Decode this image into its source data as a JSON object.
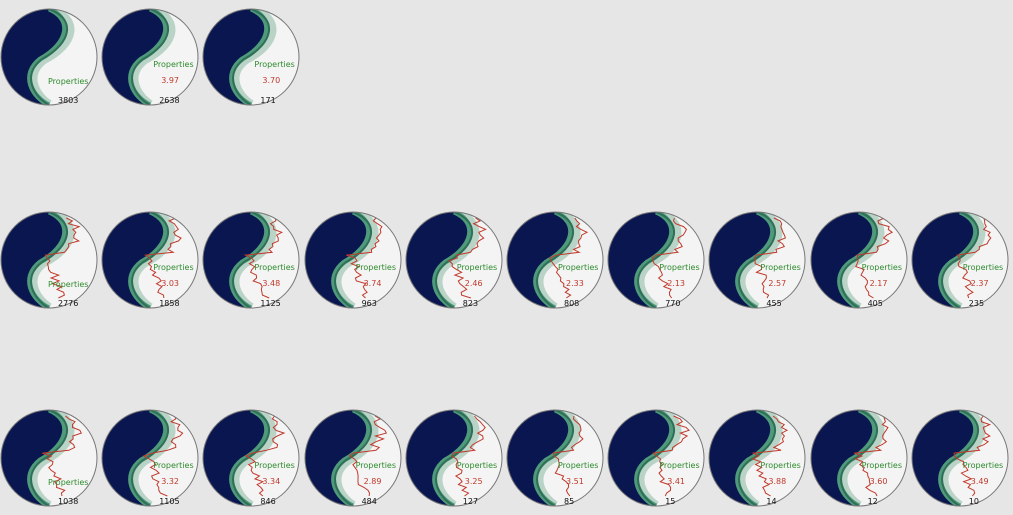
{
  "colors": {
    "background": "#e6e6e6",
    "dark_fill": "#0a1650",
    "band_light": "#4e9a7a",
    "band_dark": "#2f6f58",
    "profile": "#c0392b",
    "label_green": "#2e8b2e",
    "label_red": "#c0392b"
  },
  "label_word": "Properties",
  "rows": [
    {
      "glyphs": [
        {
          "show_title": true,
          "score": "",
          "count": "3803",
          "has_profile": false
        },
        {
          "show_title": true,
          "score": "3.97",
          "count": "2638",
          "has_profile": false
        },
        {
          "show_title": true,
          "score": "3.70",
          "count": "171",
          "has_profile": false
        }
      ]
    },
    {
      "glyphs": [
        {
          "show_title": true,
          "score": "",
          "count": "2776",
          "has_profile": true
        },
        {
          "show_title": true,
          "score": "3.03",
          "count": "1858",
          "has_profile": true
        },
        {
          "show_title": true,
          "score": "3.48",
          "count": "1125",
          "has_profile": true
        },
        {
          "show_title": true,
          "score": "3.74",
          "count": "963",
          "has_profile": true
        },
        {
          "show_title": true,
          "score": "2.46",
          "count": "823",
          "has_profile": true
        },
        {
          "show_title": true,
          "score": "2.33",
          "count": "808",
          "has_profile": true
        },
        {
          "show_title": true,
          "score": "2.13",
          "count": "770",
          "has_profile": true
        },
        {
          "show_title": true,
          "score": "2.57",
          "count": "455",
          "has_profile": true
        },
        {
          "show_title": true,
          "score": "2.17",
          "count": "405",
          "has_profile": true
        },
        {
          "show_title": true,
          "score": "2.37",
          "count": "235",
          "has_profile": true
        }
      ]
    },
    {
      "glyphs": [
        {
          "show_title": true,
          "score": "",
          "count": "1038",
          "has_profile": true
        },
        {
          "show_title": true,
          "score": "3.32",
          "count": "1105",
          "has_profile": true
        },
        {
          "show_title": true,
          "score": "3.34",
          "count": "846",
          "has_profile": true
        },
        {
          "show_title": true,
          "score": "2.89",
          "count": "484",
          "has_profile": true
        },
        {
          "show_title": true,
          "score": "3.25",
          "count": "127",
          "has_profile": true
        },
        {
          "show_title": true,
          "score": "3.51",
          "count": "85",
          "has_profile": true
        },
        {
          "show_title": true,
          "score": "3.41",
          "count": "15",
          "has_profile": true
        },
        {
          "show_title": true,
          "score": "3.88",
          "count": "14",
          "has_profile": true
        },
        {
          "show_title": true,
          "score": "3.60",
          "count": "12",
          "has_profile": true
        },
        {
          "show_title": true,
          "score": "3.49",
          "count": "10",
          "has_profile": true
        }
      ]
    }
  ]
}
